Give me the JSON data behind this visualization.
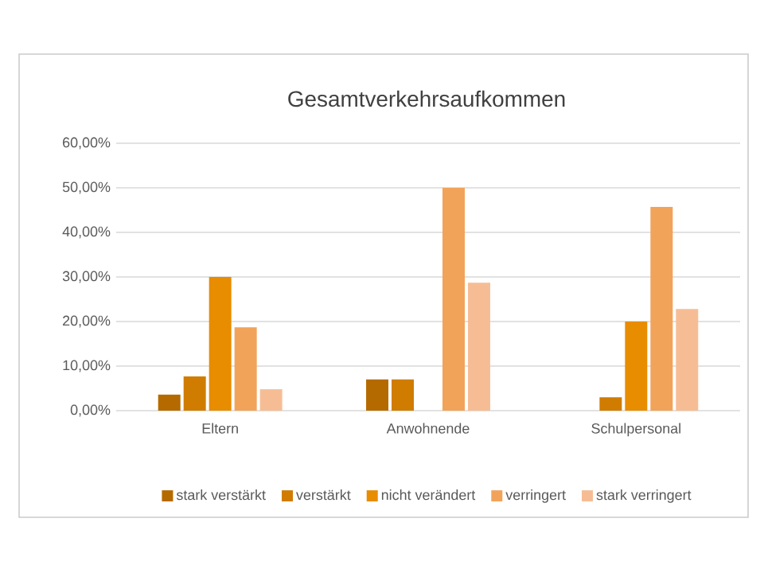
{
  "chart_data": {
    "type": "bar",
    "title": "Gesamtverkehrsaufkommen",
    "categories": [
      "Eltern",
      "Anwohnende",
      "Schulpersonal"
    ],
    "series": [
      {
        "name": "stark verstärkt",
        "color": "#b56a00",
        "values": [
          3.6,
          7.0,
          0
        ]
      },
      {
        "name": "verstärkt",
        "color": "#d07c00",
        "values": [
          7.7,
          7.0,
          3.0
        ]
      },
      {
        "name": "nicht verändert",
        "color": "#e88c00",
        "values": [
          30,
          0,
          20
        ]
      },
      {
        "name": "verringert",
        "color": "#f2a35a",
        "values": [
          18.7,
          50,
          45.7
        ]
      },
      {
        "name": "stark verringert",
        "color": "#f6bd95",
        "values": [
          4.8,
          28.7,
          22.8
        ]
      }
    ],
    "ylim": [
      0,
      60
    ],
    "yticks": [
      {
        "value": 0,
        "label": "0,00%"
      },
      {
        "value": 10,
        "label": "10,00%"
      },
      {
        "value": 20,
        "label": "20,00%"
      },
      {
        "value": 30,
        "label": "30,00%"
      },
      {
        "value": 40,
        "label": "40,00%"
      },
      {
        "value": 50,
        "label": "50,00%"
      },
      {
        "value": 60,
        "label": "60,00%"
      }
    ],
    "grid": "y",
    "legend": "bottom"
  }
}
